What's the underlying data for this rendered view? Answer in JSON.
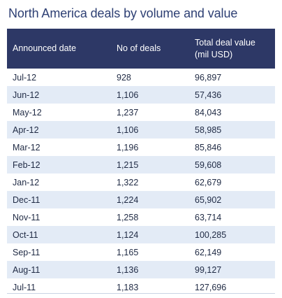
{
  "title": "North America deals by volume and value",
  "table": {
    "headers": [
      "Announced date",
      "No of deals",
      "Total deal value (mil USD)"
    ],
    "rows": [
      [
        "Jul-12",
        "928",
        "96,897"
      ],
      [
        "Jun-12",
        "1,106",
        "57,436"
      ],
      [
        "May-12",
        "1,237",
        "84,043"
      ],
      [
        "Apr-12",
        "1,106",
        "58,985"
      ],
      [
        "Mar-12",
        "1,196",
        "85,846"
      ],
      [
        "Feb-12",
        "1,215",
        "59,608"
      ],
      [
        "Jan-12",
        "1,322",
        "62,679"
      ],
      [
        "Dec-11",
        "1,224",
        "65,902"
      ],
      [
        "Nov-11",
        "1,258",
        "63,714"
      ],
      [
        "Oct-11",
        "1,124",
        "100,285"
      ],
      [
        "Sep-11",
        "1,165",
        "62,149"
      ],
      [
        "Aug-11",
        "1,136",
        "99,127"
      ],
      [
        "Jul-11",
        "1,183",
        "127,696"
      ]
    ]
  },
  "colors": {
    "header_bg": "#2d3866",
    "title": "#2d3f73",
    "stripe": "#e3ebf6"
  }
}
